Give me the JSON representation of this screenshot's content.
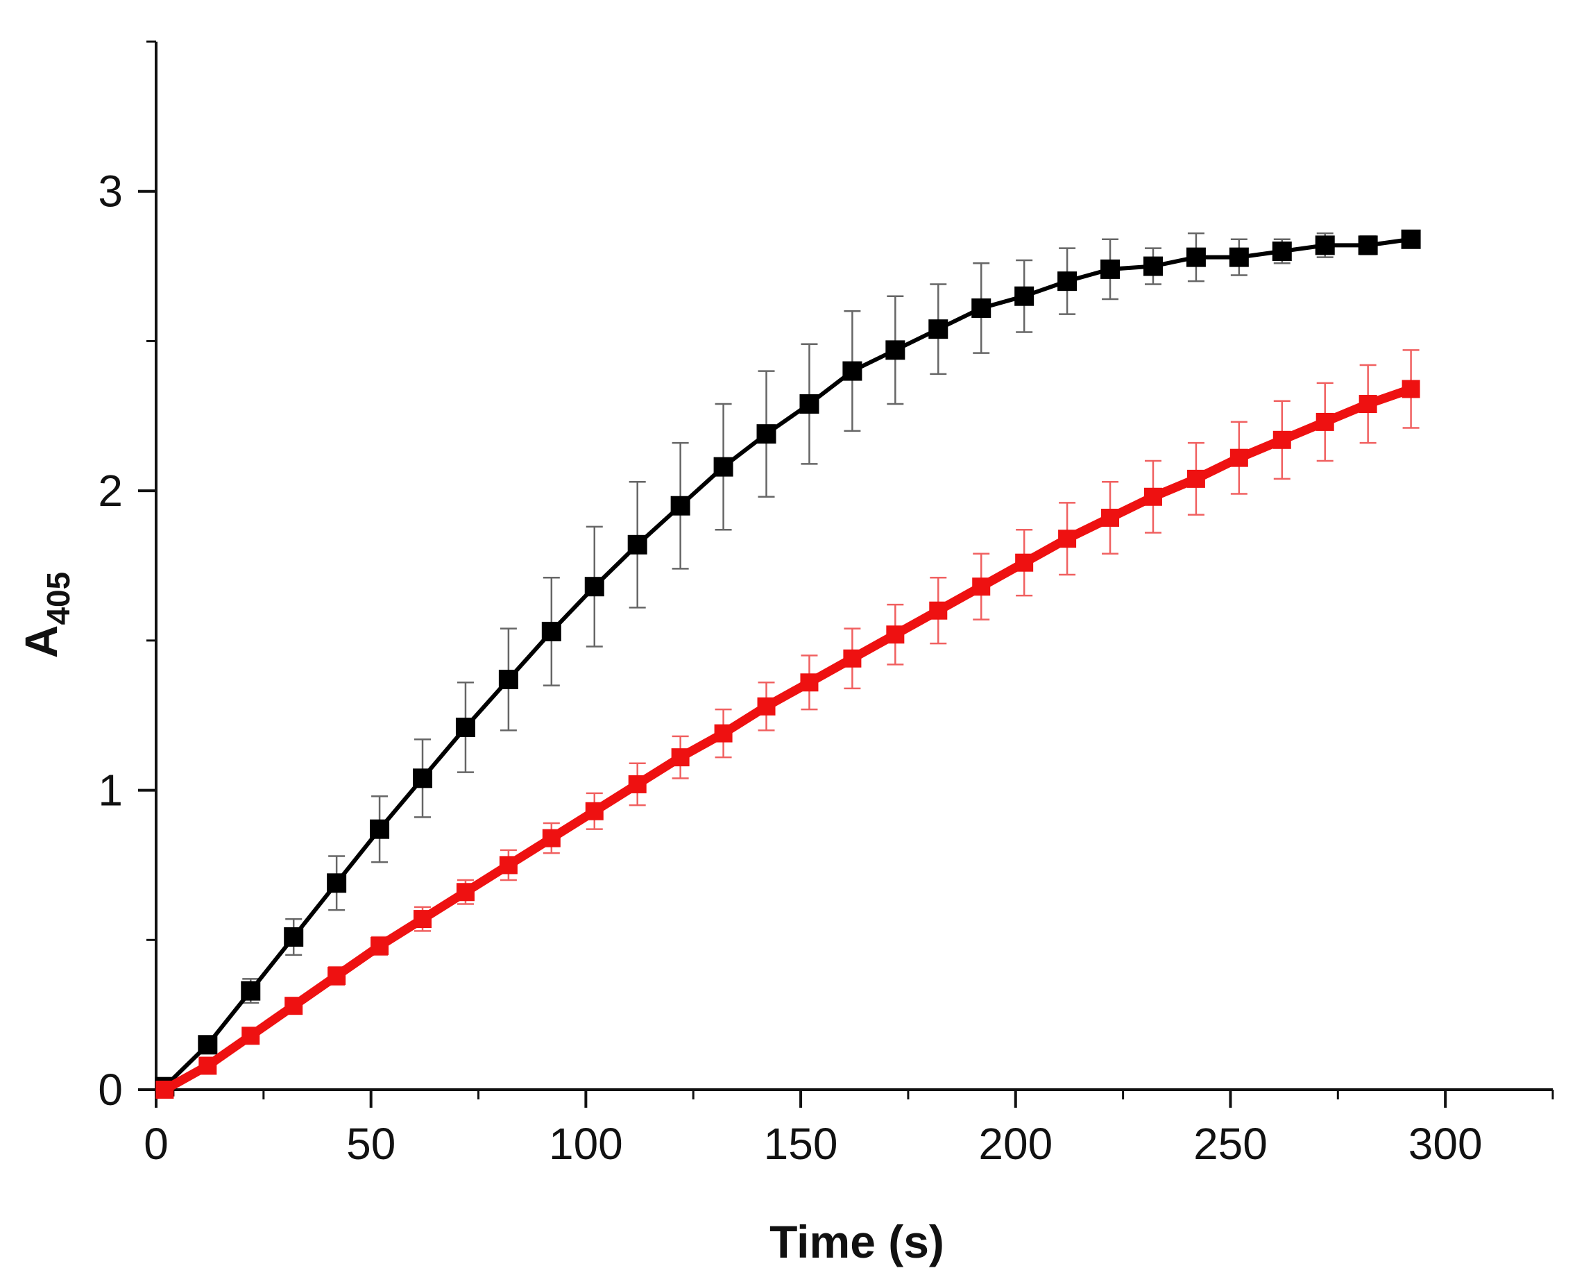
{
  "chart_data": {
    "type": "line",
    "title": "",
    "xlabel": "Time (s)",
    "ylabel_main": "A",
    "ylabel_sub": "405",
    "xlim": [
      0,
      325
    ],
    "ylim": [
      0,
      3.5
    ],
    "x_ticks": [
      0,
      50,
      100,
      150,
      200,
      250,
      300
    ],
    "x_tick_labels": [
      "0",
      "50",
      "100",
      "150",
      "200",
      "250",
      "300"
    ],
    "x_minor_ticks": [
      25,
      75,
      125,
      175,
      225,
      275,
      325
    ],
    "y_ticks": [
      0,
      1,
      2,
      3
    ],
    "y_tick_labels": [
      "0",
      "1",
      "2",
      "3"
    ],
    "y_minor_ticks": [
      0.5,
      1.5,
      2.5,
      3.5
    ],
    "grid": false,
    "legend": "none",
    "x": [
      2,
      12,
      22,
      32,
      42,
      52,
      62,
      72,
      82,
      92,
      102,
      112,
      122,
      132,
      142,
      152,
      162,
      172,
      182,
      192,
      202,
      212,
      222,
      232,
      242,
      252,
      262,
      272,
      282,
      292
    ],
    "series": [
      {
        "name": "black",
        "color": "#000000",
        "marker": "square",
        "values": [
          0.01,
          0.15,
          0.33,
          0.51,
          0.69,
          0.87,
          1.04,
          1.21,
          1.37,
          1.53,
          1.68,
          1.82,
          1.95,
          2.08,
          2.19,
          2.29,
          2.4,
          2.47,
          2.54,
          2.61,
          2.65,
          2.7,
          2.74,
          2.75,
          2.78,
          2.78,
          2.8,
          2.82,
          2.82,
          2.84
        ],
        "errors": [
          0.01,
          0.02,
          0.04,
          0.06,
          0.09,
          0.11,
          0.13,
          0.15,
          0.17,
          0.18,
          0.2,
          0.21,
          0.21,
          0.21,
          0.21,
          0.2,
          0.2,
          0.18,
          0.15,
          0.15,
          0.12,
          0.11,
          0.1,
          0.06,
          0.08,
          0.06,
          0.04,
          0.04,
          0.03,
          0.02
        ]
      },
      {
        "name": "red",
        "color": "#ee1111",
        "marker": "square",
        "values": [
          0.0,
          0.08,
          0.18,
          0.28,
          0.38,
          0.48,
          0.57,
          0.66,
          0.75,
          0.84,
          0.93,
          1.02,
          1.11,
          1.19,
          1.28,
          1.36,
          1.44,
          1.52,
          1.6,
          1.68,
          1.76,
          1.84,
          1.91,
          1.98,
          2.04,
          2.11,
          2.17,
          2.23,
          2.29,
          2.34
        ],
        "errors": [
          0.0,
          0.01,
          0.02,
          0.02,
          0.03,
          0.03,
          0.04,
          0.04,
          0.05,
          0.05,
          0.06,
          0.07,
          0.07,
          0.08,
          0.08,
          0.09,
          0.1,
          0.1,
          0.11,
          0.11,
          0.11,
          0.12,
          0.12,
          0.12,
          0.12,
          0.12,
          0.13,
          0.13,
          0.13,
          0.13
        ]
      }
    ]
  }
}
